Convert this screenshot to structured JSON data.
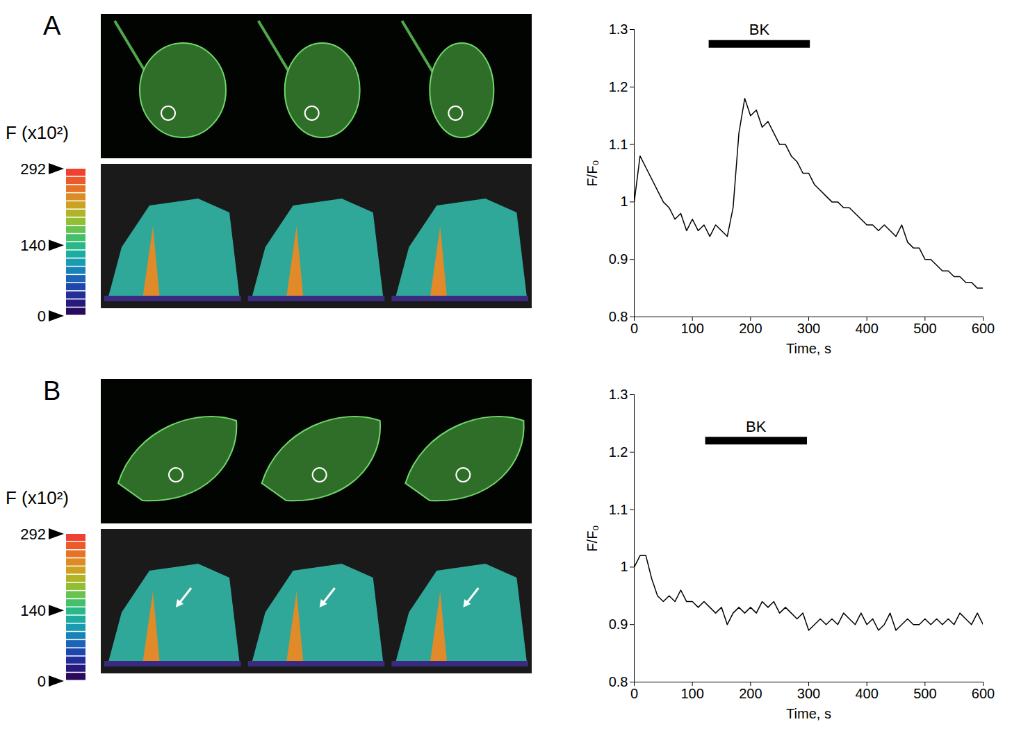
{
  "chart_data": [
    {
      "type": "line",
      "panel": "A",
      "color": "#000000",
      "xlabel": "Time, s",
      "ylabel": "F/F₀",
      "xlim": [
        0,
        600
      ],
      "ylim": [
        0.8,
        1.3
      ],
      "xticks": [
        0,
        100,
        200,
        300,
        400,
        500,
        600
      ],
      "yticks": [
        0.8,
        0.9,
        1,
        1.1,
        1.2,
        1.3
      ],
      "x": [
        0,
        10,
        20,
        30,
        40,
        50,
        60,
        70,
        80,
        90,
        100,
        110,
        120,
        130,
        140,
        150,
        160,
        170,
        180,
        190,
        200,
        210,
        220,
        230,
        240,
        250,
        260,
        270,
        280,
        290,
        300,
        310,
        320,
        330,
        340,
        350,
        360,
        370,
        380,
        390,
        400,
        410,
        420,
        430,
        440,
        450,
        460,
        470,
        480,
        490,
        500,
        510,
        520,
        530,
        540,
        550,
        560,
        570,
        580,
        590,
        600
      ],
      "values": [
        1.0,
        1.08,
        1.06,
        1.04,
        1.02,
        1.0,
        0.99,
        0.97,
        0.98,
        0.95,
        0.97,
        0.95,
        0.96,
        0.94,
        0.96,
        0.95,
        0.94,
        0.99,
        1.12,
        1.18,
        1.15,
        1.16,
        1.13,
        1.14,
        1.12,
        1.1,
        1.1,
        1.08,
        1.07,
        1.05,
        1.05,
        1.03,
        1.02,
        1.01,
        1.0,
        1.0,
        0.99,
        0.99,
        0.98,
        0.97,
        0.96,
        0.96,
        0.95,
        0.96,
        0.95,
        0.94,
        0.96,
        0.93,
        0.92,
        0.92,
        0.9,
        0.9,
        0.89,
        0.88,
        0.88,
        0.87,
        0.87,
        0.86,
        0.86,
        0.85,
        0.85
      ],
      "annotations": [
        {
          "text": "BK",
          "x_start": 128,
          "x_end": 302,
          "y": 1.275
        }
      ],
      "colorbar": {
        "label": "F (x10²)",
        "range": [
          0,
          292
        ],
        "ticks": [
          0,
          140,
          292
        ]
      }
    },
    {
      "type": "line",
      "panel": "B",
      "color": "#000000",
      "xlabel": "Time, s",
      "ylabel": "F/F₀",
      "xlim": [
        0,
        600
      ],
      "ylim": [
        0.8,
        1.3
      ],
      "xticks": [
        0,
        100,
        200,
        300,
        400,
        500,
        600
      ],
      "yticks": [
        0.8,
        0.9,
        1,
        1.1,
        1.2,
        1.3
      ],
      "x": [
        0,
        10,
        20,
        30,
        40,
        50,
        60,
        70,
        80,
        90,
        100,
        110,
        120,
        130,
        140,
        150,
        160,
        170,
        180,
        190,
        200,
        210,
        220,
        230,
        240,
        250,
        260,
        270,
        280,
        290,
        300,
        310,
        320,
        330,
        340,
        350,
        360,
        370,
        380,
        390,
        400,
        410,
        420,
        430,
        440,
        450,
        460,
        470,
        480,
        490,
        500,
        510,
        520,
        530,
        540,
        550,
        560,
        570,
        580,
        590,
        600
      ],
      "values": [
        1.0,
        1.02,
        1.02,
        0.98,
        0.95,
        0.94,
        0.95,
        0.94,
        0.96,
        0.94,
        0.94,
        0.93,
        0.94,
        0.93,
        0.92,
        0.93,
        0.9,
        0.92,
        0.93,
        0.92,
        0.93,
        0.92,
        0.94,
        0.93,
        0.94,
        0.92,
        0.93,
        0.92,
        0.91,
        0.92,
        0.89,
        0.9,
        0.91,
        0.9,
        0.91,
        0.9,
        0.92,
        0.91,
        0.9,
        0.92,
        0.9,
        0.91,
        0.89,
        0.9,
        0.92,
        0.89,
        0.9,
        0.91,
        0.9,
        0.9,
        0.91,
        0.9,
        0.91,
        0.9,
        0.91,
        0.9,
        0.92,
        0.91,
        0.9,
        0.92,
        0.9
      ],
      "annotations": [
        {
          "text": "BK",
          "x_start": 122,
          "x_end": 297,
          "y": 1.22
        }
      ],
      "colorbar": {
        "label": "F (x10²)",
        "range": [
          0,
          292
        ],
        "ticks": [
          0,
          140,
          292
        ]
      }
    }
  ]
}
